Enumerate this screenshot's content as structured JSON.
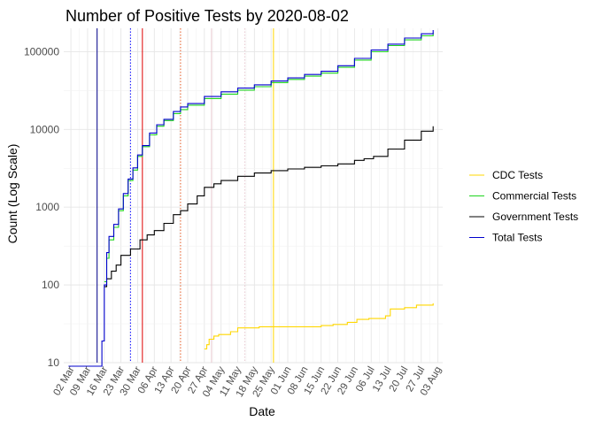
{
  "chart_data": {
    "type": "line",
    "title": "Number of Positive Tests by  2020-08-02",
    "xlabel": "Date",
    "ylabel": "Count (Log Scale)",
    "y_scale": "log10",
    "ylim": [
      10,
      200000
    ],
    "xlim": [
      "2020-02-28",
      "2020-08-05"
    ],
    "y_ticks": [
      10,
      100,
      1000,
      10000,
      100000
    ],
    "y_tick_labels": [
      "10",
      "100",
      "1000",
      "10000",
      "100000"
    ],
    "x_ticks": [
      "2020-03-02",
      "2020-03-09",
      "2020-03-16",
      "2020-03-23",
      "2020-03-30",
      "2020-04-06",
      "2020-04-13",
      "2020-04-20",
      "2020-04-27",
      "2020-05-04",
      "2020-05-11",
      "2020-05-18",
      "2020-05-25",
      "2020-06-01",
      "2020-06-08",
      "2020-06-15",
      "2020-06-22",
      "2020-06-29",
      "2020-07-06",
      "2020-07-13",
      "2020-07-20",
      "2020-07-27",
      "2020-08-03"
    ],
    "x_tick_labels": [
      "02 Mar",
      "09 Mar",
      "16 Mar",
      "23 Mar",
      "30 Mar",
      "06 Apr",
      "13 Apr",
      "20 Apr",
      "27 Apr",
      "04 May",
      "11 May",
      "18 May",
      "25 May",
      "01 Jun",
      "08 Jun",
      "15 Jun",
      "22 Jun",
      "29 Jun",
      "06 Jul",
      "13 Jul",
      "20 Jul",
      "27 Jul",
      "03 Aug"
    ],
    "grid": true,
    "legend_position": "right",
    "series": [
      {
        "name": "CDC Tests",
        "color": "#FFD700",
        "points": [
          [
            "2020-04-27",
            15
          ],
          [
            "2020-04-28",
            17
          ],
          [
            "2020-04-29",
            20
          ],
          [
            "2020-05-01",
            22
          ],
          [
            "2020-05-03",
            23
          ],
          [
            "2020-05-08",
            25
          ],
          [
            "2020-05-11",
            28
          ],
          [
            "2020-05-20",
            29
          ],
          [
            "2020-06-12",
            29
          ],
          [
            "2020-06-15",
            30
          ],
          [
            "2020-06-20",
            31
          ],
          [
            "2020-06-26",
            33
          ],
          [
            "2020-06-30",
            36
          ],
          [
            "2020-07-05",
            37
          ],
          [
            "2020-07-10",
            37
          ],
          [
            "2020-07-12",
            40
          ],
          [
            "2020-07-14",
            49
          ],
          [
            "2020-07-20",
            51
          ],
          [
            "2020-07-25",
            55
          ],
          [
            "2020-08-01",
            58
          ]
        ]
      },
      {
        "name": "Commercial Tests",
        "color": "#1FD41F",
        "points": [
          [
            "2020-03-16",
            110
          ],
          [
            "2020-03-17",
            220
          ],
          [
            "2020-03-18",
            380
          ],
          [
            "2020-03-20",
            550
          ],
          [
            "2020-03-22",
            900
          ],
          [
            "2020-03-24",
            1400
          ],
          [
            "2020-03-26",
            2200
          ],
          [
            "2020-03-28",
            3000
          ],
          [
            "2020-03-30",
            4500
          ],
          [
            "2020-04-01",
            6000
          ],
          [
            "2020-04-04",
            8500
          ],
          [
            "2020-04-07",
            11000
          ],
          [
            "2020-04-10",
            13000
          ],
          [
            "2020-04-14",
            16000
          ],
          [
            "2020-04-17",
            18000
          ],
          [
            "2020-04-20",
            20500
          ],
          [
            "2020-04-27",
            25000
          ],
          [
            "2020-05-04",
            28500
          ],
          [
            "2020-05-11",
            32000
          ],
          [
            "2020-05-18",
            35500
          ],
          [
            "2020-05-25",
            40000
          ],
          [
            "2020-06-01",
            44000
          ],
          [
            "2020-06-08",
            48500
          ],
          [
            "2020-06-15",
            53000
          ],
          [
            "2020-06-22",
            63000
          ],
          [
            "2020-06-29",
            78000
          ],
          [
            "2020-07-06",
            100000
          ],
          [
            "2020-07-13",
            120000
          ],
          [
            "2020-07-20",
            142000
          ],
          [
            "2020-07-27",
            160000
          ],
          [
            "2020-08-01",
            175000
          ]
        ]
      },
      {
        "name": "Government Tests",
        "color": "#000000",
        "points": [
          [
            "2020-03-16",
            95
          ],
          [
            "2020-03-17",
            120
          ],
          [
            "2020-03-19",
            150
          ],
          [
            "2020-03-21",
            180
          ],
          [
            "2020-03-23",
            240
          ],
          [
            "2020-03-27",
            290
          ],
          [
            "2020-03-31",
            380
          ],
          [
            "2020-04-03",
            440
          ],
          [
            "2020-04-06",
            500
          ],
          [
            "2020-04-10",
            620
          ],
          [
            "2020-04-14",
            800
          ],
          [
            "2020-04-17",
            900
          ],
          [
            "2020-04-20",
            1100
          ],
          [
            "2020-04-24",
            1400
          ],
          [
            "2020-04-27",
            1800
          ],
          [
            "2020-05-01",
            2000
          ],
          [
            "2020-05-04",
            2200
          ],
          [
            "2020-05-11",
            2500
          ],
          [
            "2020-05-18",
            2750
          ],
          [
            "2020-05-25",
            2950
          ],
          [
            "2020-06-01",
            3100
          ],
          [
            "2020-06-08",
            3250
          ],
          [
            "2020-06-15",
            3400
          ],
          [
            "2020-06-22",
            3600
          ],
          [
            "2020-06-29",
            4000
          ],
          [
            "2020-07-03",
            4200
          ],
          [
            "2020-07-07",
            4500
          ],
          [
            "2020-07-13",
            5600
          ],
          [
            "2020-07-20",
            7300
          ],
          [
            "2020-07-27",
            9500
          ],
          [
            "2020-08-01",
            11000
          ]
        ]
      },
      {
        "name": "Total Tests",
        "color": "#0000CD",
        "points": [
          [
            "2020-03-01",
            9
          ],
          [
            "2020-03-14",
            9
          ],
          [
            "2020-03-15",
            19
          ],
          [
            "2020-03-16",
            100
          ],
          [
            "2020-03-17",
            260
          ],
          [
            "2020-03-18",
            420
          ],
          [
            "2020-03-20",
            600
          ],
          [
            "2020-03-22",
            950
          ],
          [
            "2020-03-24",
            1500
          ],
          [
            "2020-03-26",
            2300
          ],
          [
            "2020-03-28",
            3200
          ],
          [
            "2020-03-30",
            4700
          ],
          [
            "2020-04-01",
            6200
          ],
          [
            "2020-04-04",
            9000
          ],
          [
            "2020-04-07",
            11500
          ],
          [
            "2020-04-10",
            13500
          ],
          [
            "2020-04-14",
            17000
          ],
          [
            "2020-04-17",
            19500
          ],
          [
            "2020-04-20",
            21500
          ],
          [
            "2020-04-27",
            26500
          ],
          [
            "2020-05-04",
            30500
          ],
          [
            "2020-05-11",
            34000
          ],
          [
            "2020-05-18",
            37500
          ],
          [
            "2020-05-25",
            42000
          ],
          [
            "2020-06-01",
            46000
          ],
          [
            "2020-06-08",
            51000
          ],
          [
            "2020-06-15",
            56000
          ],
          [
            "2020-06-22",
            66000
          ],
          [
            "2020-06-29",
            82000
          ],
          [
            "2020-07-06",
            105000
          ],
          [
            "2020-07-13",
            125000
          ],
          [
            "2020-07-20",
            150000
          ],
          [
            "2020-07-27",
            170000
          ],
          [
            "2020-08-01",
            190000
          ]
        ]
      }
    ],
    "reference_lines": [
      {
        "date": "2020-03-13",
        "color": "#00008B",
        "style": "solid"
      },
      {
        "date": "2020-03-27",
        "color": "#0000FF",
        "style": "dotted"
      },
      {
        "date": "2020-04-01",
        "color": "#E00000",
        "style": "solid"
      },
      {
        "date": "2020-04-17",
        "color": "#E25822",
        "style": "dotted"
      },
      {
        "date": "2020-04-30",
        "color": "#E8C8D0",
        "style": "solid"
      },
      {
        "date": "2020-05-14",
        "color": "#E8C8D0",
        "style": "dotted"
      },
      {
        "date": "2020-05-26",
        "color": "#FFD700",
        "style": "solid"
      }
    ]
  }
}
